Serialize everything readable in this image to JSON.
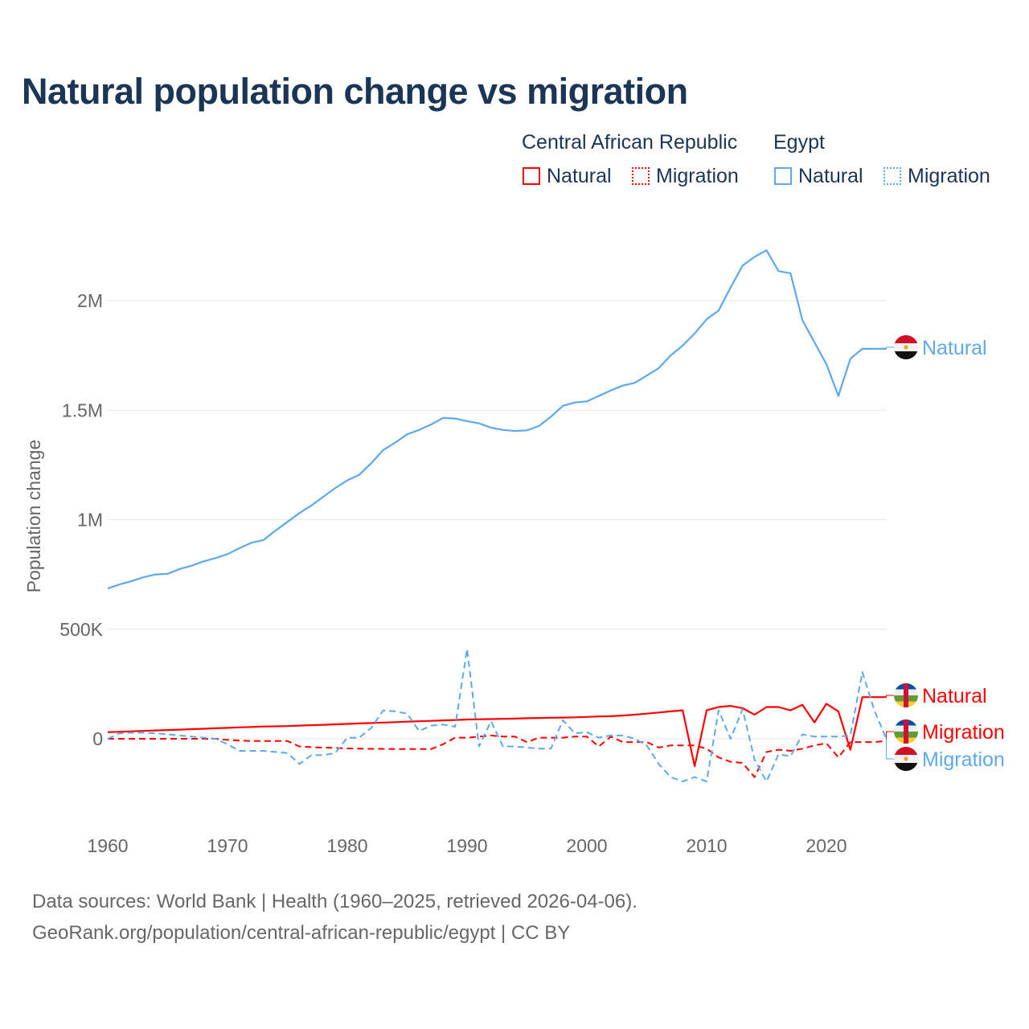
{
  "title": "Natural population change vs migration",
  "legend": {
    "groups": [
      {
        "country": "Central African Republic",
        "items": [
          "Natural",
          "Migration"
        ],
        "color": "#ff0000"
      },
      {
        "country": "Egypt",
        "items": [
          "Natural",
          "Migration"
        ],
        "color": "#5ea8ec"
      }
    ]
  },
  "footer": {
    "line1": "Data sources: World Bank | Health (1960–2025, retrieved 2026-04-06).",
    "line2": "GeoRank.org/population/central-african-republic/egypt | CC BY"
  },
  "chart_data": {
    "type": "line",
    "title": "Natural population change vs migration",
    "xlabel": "",
    "ylabel": "Population change",
    "xlim": [
      1960,
      2025
    ],
    "ylim": [
      -300000,
      2300000
    ],
    "x_ticks": [
      "1960",
      "1970",
      "1980",
      "1990",
      "2000",
      "2010",
      "2020"
    ],
    "y_ticks": [
      {
        "v": 0,
        "label": "0"
      },
      {
        "v": 500000,
        "label": "500K"
      },
      {
        "v": 1000000,
        "label": "1M"
      },
      {
        "v": 1500000,
        "label": "1.5M"
      },
      {
        "v": 2000000,
        "label": "2M"
      }
    ],
    "grid": true,
    "units": "thousands",
    "series": [
      {
        "name": "Egypt Natural",
        "end_label": "Natural",
        "color": "#5ea8ec",
        "dash": false,
        "values": [
          686,
          705,
          720,
          738,
          750,
          753,
          775,
          790,
          810,
          825,
          843,
          870,
          895,
          907,
          950,
          990,
          1030,
          1065,
          1105,
          1145,
          1180,
          1205,
          1258,
          1318,
          1352,
          1390,
          1410,
          1435,
          1465,
          1462,
          1450,
          1440,
          1420,
          1410,
          1405,
          1408,
          1428,
          1470,
          1520,
          1535,
          1540,
          1565,
          1590,
          1612,
          1625,
          1658,
          1692,
          1750,
          1795,
          1850,
          1915,
          1955,
          2060,
          2160,
          2200,
          2230,
          2135,
          2125,
          1910,
          1810,
          1710,
          1565,
          1735,
          1780,
          1780,
          1780
        ]
      },
      {
        "name": "Central African Republic Natural",
        "end_label": "Natural",
        "color": "#ff0000",
        "dash": false,
        "values": [
          30,
          32,
          34,
          36,
          38,
          40,
          42,
          44,
          46,
          48,
          50,
          52,
          54,
          56,
          57,
          58,
          60,
          62,
          64,
          66,
          68,
          70,
          72,
          74,
          76,
          78,
          80,
          82,
          84,
          86,
          88,
          89,
          90,
          91,
          92,
          94,
          95,
          96,
          97,
          98,
          100,
          102,
          103,
          106,
          110,
          115,
          120,
          125,
          130,
          -125,
          130,
          145,
          150,
          140,
          110,
          145,
          145,
          130,
          155,
          75,
          160,
          125,
          -50,
          190,
          190,
          190
        ]
      },
      {
        "name": "Central African Republic Migration",
        "end_label": "Migration",
        "color": "#ff0000",
        "dash": true,
        "values": [
          0,
          0,
          0,
          0,
          0,
          0,
          0,
          0,
          0,
          0,
          -5,
          -8,
          -10,
          -10,
          -10,
          -10,
          -35,
          -38,
          -40,
          -42,
          -44,
          -45,
          -46,
          -46,
          -47,
          -47,
          -47,
          -47,
          -25,
          5,
          5,
          10,
          15,
          10,
          10,
          -15,
          5,
          5,
          5,
          10,
          10,
          -35,
          10,
          -15,
          -15,
          -15,
          -40,
          -30,
          -30,
          -30,
          -45,
          -85,
          -105,
          -110,
          -175,
          -60,
          -50,
          -55,
          -45,
          -30,
          -20,
          -85,
          -15,
          -15,
          -15,
          -10
        ]
      },
      {
        "name": "Egypt Migration",
        "end_label": "Migration",
        "color": "#5ea8ec",
        "dash": true,
        "values": [
          0,
          25,
          28,
          28,
          25,
          20,
          15,
          10,
          5,
          0,
          -25,
          -55,
          -55,
          -55,
          -60,
          -65,
          -115,
          -75,
          -75,
          -65,
          5,
          5,
          50,
          130,
          125,
          115,
          35,
          60,
          65,
          55,
          410,
          -35,
          80,
          -35,
          -35,
          -40,
          -45,
          -45,
          85,
          25,
          30,
          5,
          15,
          15,
          0,
          -30,
          -115,
          -175,
          -195,
          -175,
          -195,
          130,
          0,
          135,
          -95,
          -195,
          -70,
          -80,
          20,
          10,
          10,
          10,
          15,
          305,
          130,
          0
        ]
      }
    ]
  }
}
